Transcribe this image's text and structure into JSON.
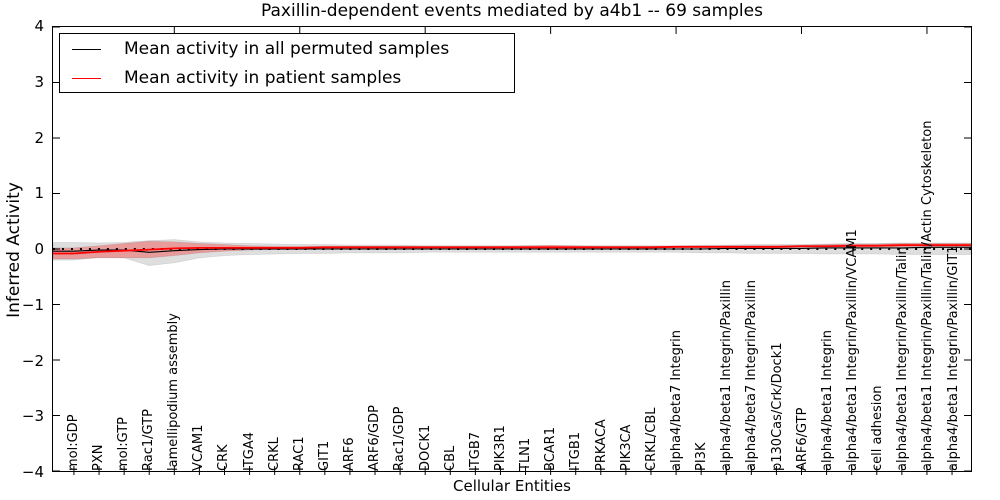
{
  "title": "Paxillin-dependent events mediated by a4b1 -- 69 samples",
  "axes": {
    "ylabel": "Inferred Activity",
    "xlabel": "Cellular Entities"
  },
  "legend": {
    "items": [
      {
        "label": "Mean activity in all permuted samples",
        "color": "#000000"
      },
      {
        "label": "Mean activity in patient samples",
        "color": "#ff0000"
      }
    ]
  },
  "chart_data": {
    "type": "line",
    "title": "Paxillin-dependent events mediated by a4b1 -- 69 samples",
    "xlabel": "Cellular Entities",
    "ylabel": "Inferred Activity",
    "ylim": [
      -4,
      4
    ],
    "yticks": [
      4,
      3,
      2,
      1,
      0,
      -1,
      -2,
      -3,
      -4
    ],
    "grid": false,
    "legend_position": "upper left",
    "zero_line": {
      "y": 0,
      "style": "dotted",
      "color": "#000000"
    },
    "top_tick_indices": [
      4,
      9,
      14,
      19,
      24,
      29,
      34
    ],
    "categories": [
      "mol:GDP",
      "PXN",
      "mol:GTP",
      "Rac1/GTP",
      "lamellipodium assembly",
      "VCAM1",
      "CRK",
      "ITGA4",
      "CRKL",
      "RAC1",
      "GIT1",
      "ARF6",
      "ARF6/GDP",
      "Rac1/GDP",
      "DOCK1",
      "CBL",
      "ITGB7",
      "PIK3R1",
      "TLN1",
      "BCAR1",
      "ITGB1",
      "PRKACA",
      "PIK3CA",
      "CRKL/CBL",
      "alpha4/beta7 Integrin",
      "PI3K",
      "alpha4/beta1 Integrin/Paxillin",
      "alpha4/beta7 Integrin/Paxillin",
      "p130Cas/Crk/Dock1",
      "ARF6/GTP",
      "alpha4/beta1 Integrin",
      "alpha4/beta1 Integrin/Paxillin/VCAM1",
      "cell adhesion",
      "alpha4/beta1 Integrin/Paxillin/Talin",
      "alpha4/beta1 Integrin/Paxillin/Talin/Actin Cytoskeleton",
      "alpha4/beta1 Integrin/Paxillin/GIT1"
    ],
    "series": [
      {
        "name": "Mean activity in all permuted samples",
        "color": "#000000",
        "band_color": "rgba(0,0,0,0.13)",
        "values": [
          -0.04,
          -0.02,
          -0.02,
          -0.06,
          -0.03,
          -0.01,
          0,
          0,
          0,
          0,
          0,
          0,
          0,
          0,
          0,
          0,
          0,
          0,
          0,
          0,
          0,
          0,
          0,
          0,
          0,
          0,
          0.01,
          0.01,
          0.01,
          0.01,
          0.02,
          0.02,
          0.02,
          0.02,
          0.03,
          0.03
        ],
        "band_hi": [
          0.12,
          0.11,
          0.12,
          0.15,
          0.17,
          0.13,
          0.11,
          0.1,
          0.09,
          0.08,
          0.08,
          0.07,
          0.07,
          0.07,
          0.06,
          0.06,
          0.06,
          0.06,
          0.06,
          0.06,
          0.06,
          0.06,
          0.06,
          0.06,
          0.06,
          0.07,
          0.07,
          0.08,
          0.08,
          0.08,
          0.09,
          0.1,
          0.1,
          0.11,
          0.11,
          0.11
        ],
        "band_lo": [
          -0.2,
          -0.15,
          -0.16,
          -0.3,
          -0.25,
          -0.16,
          -0.12,
          -0.1,
          -0.09,
          -0.08,
          -0.08,
          -0.07,
          -0.07,
          -0.07,
          -0.06,
          -0.06,
          -0.06,
          -0.06,
          -0.06,
          -0.06,
          -0.06,
          -0.06,
          -0.06,
          -0.06,
          -0.06,
          -0.07,
          -0.07,
          -0.08,
          -0.08,
          -0.08,
          -0.09,
          -0.09,
          -0.09,
          -0.1,
          -0.1,
          -0.1
        ]
      },
      {
        "name": "Mean activity in patient samples",
        "color": "#ff0000",
        "band_color": "rgba(255,0,0,0.30)",
        "values": [
          -0.08,
          -0.05,
          -0.03,
          -0.01,
          0.01,
          0.02,
          0.02,
          0.02,
          0.02,
          0.02,
          0.03,
          0.03,
          0.03,
          0.03,
          0.03,
          0.03,
          0.03,
          0.03,
          0.03,
          0.03,
          0.03,
          0.03,
          0.03,
          0.03,
          0.04,
          0.04,
          0.04,
          0.04,
          0.04,
          0.05,
          0.05,
          0.06,
          0.06,
          0.07,
          0.07,
          0.07
        ],
        "band_hi": [
          0.02,
          0.06,
          0.1,
          0.14,
          0.13,
          0.1,
          0.08,
          0.06,
          0.05,
          0.05,
          0.05,
          0.05,
          0.05,
          0.05,
          0.05,
          0.05,
          0.05,
          0.05,
          0.06,
          0.07,
          0.06,
          0.05,
          0.05,
          0.05,
          0.05,
          0.05,
          0.06,
          0.06,
          0.06,
          0.07,
          0.08,
          0.09,
          0.09,
          0.1,
          0.1,
          0.1
        ],
        "band_lo": [
          -0.18,
          -0.16,
          -0.16,
          -0.16,
          -0.12,
          -0.07,
          -0.04,
          -0.02,
          -0.01,
          -0.01,
          0.0,
          0.0,
          0.0,
          0.0,
          0.01,
          0.01,
          0.01,
          0.01,
          0.0,
          0.0,
          0.01,
          0.01,
          0.01,
          0.01,
          0.02,
          0.02,
          0.02,
          0.02,
          0.02,
          0.03,
          0.03,
          0.03,
          0.03,
          0.04,
          0.04,
          0.04
        ]
      }
    ]
  }
}
